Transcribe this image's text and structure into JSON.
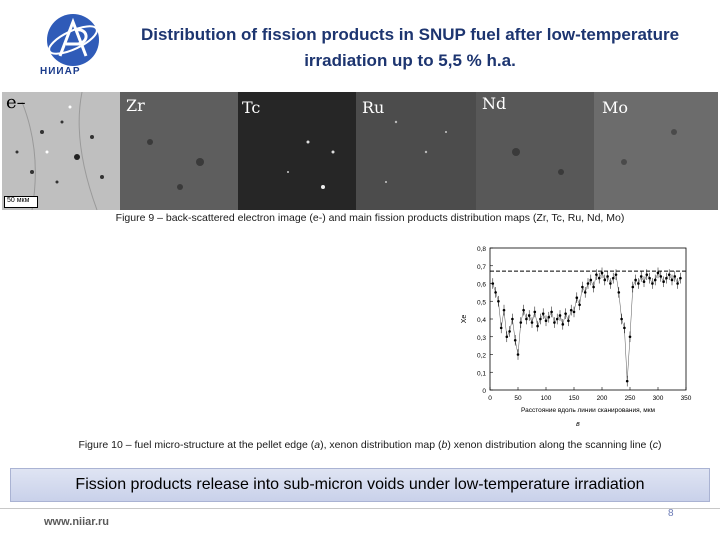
{
  "logo": {
    "name": "niiar-logo",
    "text": "НИИАР"
  },
  "title": "Distribution of fission products in SNUP fuel after low-temperature irradiation up to 5,5 % h.a.",
  "panels": [
    {
      "id": "e",
      "label": "e–"
    },
    {
      "id": "zr",
      "label": "Zr"
    },
    {
      "id": "tc",
      "label": "Tc"
    },
    {
      "id": "ru",
      "label": "Ru"
    },
    {
      "id": "nd",
      "label": "Nd"
    },
    {
      "id": "mo",
      "label": "Mo"
    }
  ],
  "scalebar": "50 мкм",
  "figure9_caption": "Figure 9 – back-scattered electron image (e-) and main fission products distribution maps (Zr, Tc, Ru, Nd, Mo)",
  "figure10_caption_parts": {
    "p1": "Figure 10 – fuel micro-structure at the pellet edge (",
    "a": "a",
    "p2": "), xenon distribution map (",
    "b": "b",
    "p3": ") xenon distribution along the scanning line (",
    "c": "c",
    "p4": ")"
  },
  "chart_data": {
    "type": "scatter",
    "xlabel": "Расстояние вдоль линии сканирования, мкм",
    "ylabel": "Xe",
    "xlim": [
      0,
      350
    ],
    "ylim": [
      0,
      0.8
    ],
    "xticks": [
      0,
      50,
      100,
      150,
      200,
      250,
      300,
      350
    ],
    "yticks": [
      0,
      0.1,
      0.2,
      0.3,
      0.4,
      0.5,
      0.6,
      0.7,
      0.8
    ],
    "reference_line_y": 0.67,
    "panel_letter": "в",
    "x": [
      5,
      10,
      15,
      20,
      25,
      30,
      35,
      40,
      45,
      50,
      55,
      60,
      65,
      70,
      75,
      80,
      85,
      90,
      95,
      100,
      105,
      110,
      115,
      120,
      125,
      130,
      135,
      140,
      145,
      150,
      155,
      160,
      165,
      170,
      175,
      180,
      185,
      190,
      195,
      200,
      205,
      210,
      215,
      220,
      225,
      230,
      235,
      240,
      245,
      250,
      255,
      260,
      265,
      270,
      275,
      280,
      285,
      290,
      295,
      300,
      305,
      310,
      315,
      320,
      325,
      330,
      335,
      340
    ],
    "y": [
      0.6,
      0.55,
      0.5,
      0.35,
      0.45,
      0.3,
      0.33,
      0.4,
      0.28,
      0.2,
      0.38,
      0.45,
      0.4,
      0.42,
      0.38,
      0.44,
      0.36,
      0.4,
      0.43,
      0.39,
      0.41,
      0.44,
      0.38,
      0.4,
      0.42,
      0.37,
      0.43,
      0.39,
      0.45,
      0.44,
      0.52,
      0.48,
      0.58,
      0.55,
      0.6,
      0.62,
      0.58,
      0.65,
      0.63,
      0.66,
      0.62,
      0.64,
      0.6,
      0.63,
      0.65,
      0.55,
      0.4,
      0.35,
      0.05,
      0.3,
      0.58,
      0.62,
      0.6,
      0.64,
      0.61,
      0.65,
      0.63,
      0.6,
      0.62,
      0.66,
      0.64,
      0.61,
      0.63,
      0.65,
      0.62,
      0.64,
      0.6,
      0.63
    ]
  },
  "banner": "Fission products release into sub-micron voids under low-temperature irradiation",
  "footer": {
    "site": "www.niiar.ru",
    "page": "8"
  }
}
